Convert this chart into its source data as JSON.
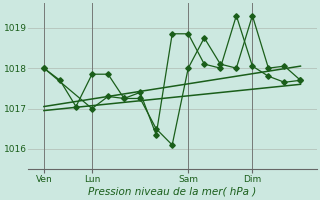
{
  "bg_color": "#cce8e0",
  "grid_color": "#b8c8c0",
  "line_color": "#1a5e1a",
  "title": "Pression niveau de la mer( hPa )",
  "yticks": [
    1016,
    1017,
    1018,
    1019
  ],
  "ylim": [
    1015.5,
    1019.6
  ],
  "xtick_labels": [
    "Ven",
    "Lun",
    "Sam",
    "Dim"
  ],
  "xtick_positions": [
    1,
    4,
    10,
    14
  ],
  "xlim": [
    0,
    18
  ],
  "series1_x": [
    1,
    2,
    3,
    4,
    5,
    6,
    7,
    8,
    9,
    10,
    11,
    12,
    13,
    14,
    15,
    16,
    17
  ],
  "series1_y": [
    1018.0,
    1017.7,
    1017.05,
    1017.85,
    1017.85,
    1017.25,
    1017.25,
    1016.5,
    1016.1,
    1018.0,
    1018.75,
    1018.1,
    1018.0,
    1019.3,
    1018.0,
    1018.05,
    1017.7
  ],
  "series2_x": [
    1,
    4,
    5,
    6,
    7,
    8,
    9,
    10,
    11,
    12,
    13,
    14,
    15,
    16,
    17
  ],
  "series2_y": [
    1018.0,
    1017.0,
    1017.3,
    1017.25,
    1017.4,
    1016.35,
    1018.85,
    1018.85,
    1018.1,
    1018.0,
    1019.3,
    1018.05,
    1017.8,
    1017.65,
    1017.7
  ],
  "trend1_x": [
    1,
    17
  ],
  "trend1_y": [
    1016.95,
    1017.6
  ],
  "trend2_x": [
    1,
    17
  ],
  "trend2_y": [
    1017.05,
    1018.05
  ],
  "vlines_x": [
    1,
    4,
    10,
    14
  ],
  "sep_color": "#666666",
  "title_fontsize": 7.5,
  "tick_fontsize": 6.5
}
